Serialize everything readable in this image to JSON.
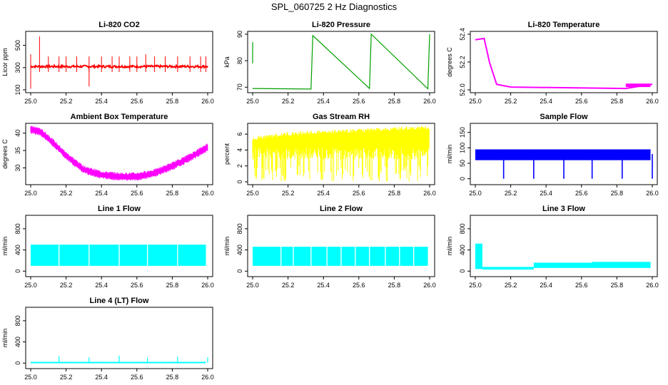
{
  "page": {
    "title": "SPL_060725  2 Hz Diagnostics"
  },
  "chart_data": [
    {
      "id": "co2",
      "type": "line",
      "title": "Li-820 CO2",
      "ylabel": "Licor ppm",
      "color": "#ff0000",
      "xlim": [
        25.0,
        26.0
      ],
      "ylim": [
        100,
        600
      ],
      "yticks": [
        100,
        300,
        500
      ],
      "xticks": [
        "25.0",
        "25.2",
        "25.4",
        "25.6",
        "25.8",
        "26.0"
      ],
      "series": [
        {
          "name": "CO2",
          "x": [
            25.0,
            25.02,
            25.04,
            25.05,
            25.06,
            25.1,
            25.2,
            25.3,
            25.33,
            25.34,
            25.4,
            25.5,
            25.6,
            25.65,
            25.7,
            25.8,
            25.9,
            26.0
          ],
          "values": [
            310,
            300,
            305,
            580,
            310,
            315,
            320,
            310,
            130,
            300,
            315,
            318,
            310,
            380,
            305,
            310,
            315,
            300
          ]
        }
      ]
    },
    {
      "id": "pressure",
      "type": "line",
      "title": "Li-820 Pressure",
      "ylabel": "kPa",
      "color": "#00a000",
      "xlim": [
        25.0,
        26.0
      ],
      "ylim": [
        69,
        90
      ],
      "yticks": [
        70,
        80,
        90
      ],
      "xticks": [
        "25.0",
        "25.2",
        "25.4",
        "25.6",
        "25.8",
        "26.0"
      ],
      "series": [
        {
          "name": "Pressure",
          "x": [
            25.0,
            25.33,
            25.34,
            25.66,
            25.67,
            25.99,
            26.0
          ],
          "values": [
            69.5,
            69.3,
            89.5,
            69.5,
            90,
            69.4,
            90
          ]
        }
      ]
    },
    {
      "id": "temperature",
      "type": "line",
      "title": "Li-820 Temperature",
      "ylabel": "degrees C",
      "color": "#ff00ff",
      "xlim": [
        25.0,
        26.0
      ],
      "ylim": [
        52.0,
        52.4
      ],
      "yticks": [
        52.0,
        52.2,
        52.4
      ],
      "xticks": [
        "25.0",
        "25.2",
        "25.4",
        "25.6",
        "25.8",
        "26.0"
      ],
      "series": [
        {
          "name": "Temp",
          "x": [
            25.0,
            25.05,
            25.08,
            25.12,
            25.2,
            25.85,
            26.0
          ],
          "values": [
            52.36,
            52.37,
            52.2,
            52.04,
            52.02,
            52.01,
            52.04
          ]
        }
      ]
    },
    {
      "id": "ambient",
      "type": "line",
      "title": "Ambient Box Temperature",
      "ylabel": "degrees C",
      "color": "#ff00ff",
      "xlim": [
        25.0,
        26.0
      ],
      "ylim": [
        26,
        42
      ],
      "yticks": [
        30,
        35,
        40
      ],
      "xticks": [
        "25.0",
        "25.2",
        "25.4",
        "25.6",
        "25.8",
        "26.0"
      ],
      "series": [
        {
          "name": "Ambient",
          "x": [
            25.0,
            25.05,
            25.1,
            25.2,
            25.3,
            25.4,
            25.5,
            25.6,
            25.7,
            25.8,
            25.9,
            26.0
          ],
          "values": [
            41,
            40.5,
            38.5,
            33.5,
            29.5,
            28,
            27.5,
            27.5,
            28.5,
            30.5,
            33,
            36
          ]
        }
      ]
    },
    {
      "id": "rh",
      "type": "area",
      "title": "Gas Stream RH",
      "ylabel": "percent",
      "color": "#ffff00",
      "xlim": [
        25.0,
        26.0
      ],
      "ylim": [
        0,
        7
      ],
      "yticks": [
        0,
        2,
        4,
        6
      ],
      "xticks": [
        "25.0",
        "25.2",
        "25.4",
        "25.6",
        "25.8",
        "26.0"
      ],
      "series": [
        {
          "name": "RH",
          "x": [
            25.0,
            25.2,
            25.4,
            25.6,
            25.8,
            26.0
          ],
          "values": [
            5.2,
            5.8,
            6.0,
            6.2,
            6.4,
            6.6
          ]
        }
      ]
    },
    {
      "id": "sample",
      "type": "line",
      "title": "Sample Flow",
      "ylabel": "ml/min",
      "color": "#0000ff",
      "xlim": [
        25.0,
        26.0
      ],
      "ylim": [
        -10,
        170
      ],
      "yticks": [
        0,
        50,
        100,
        150
      ],
      "xticks": [
        "25.0",
        "25.2",
        "25.4",
        "25.6",
        "25.8",
        "26.0"
      ],
      "series": [
        {
          "name": "Sample",
          "x": [
            25.0,
            25.16,
            25.33,
            25.5,
            25.66,
            25.83,
            26.0
          ],
          "values": [
            80,
            0,
            0,
            0,
            0,
            0,
            0
          ]
        }
      ]
    },
    {
      "id": "line1",
      "type": "area",
      "title": "Line 1 Flow",
      "ylabel": "ml/min",
      "color": "#00ffff",
      "xlim": [
        25.0,
        26.0
      ],
      "ylim": [
        -50,
        1000
      ],
      "yticks": [
        0,
        400,
        800
      ],
      "xticks": [
        "25.0",
        "25.2",
        "25.4",
        "25.6",
        "25.8",
        "26.0"
      ],
      "series": [
        {
          "name": "Line 1",
          "x": [
            25.0,
            26.0
          ],
          "values": [
            500,
            500
          ]
        }
      ]
    },
    {
      "id": "line2",
      "type": "area",
      "title": "Line 2 Flow",
      "ylabel": "ml/min",
      "color": "#00ffff",
      "xlim": [
        25.0,
        26.0
      ],
      "ylim": [
        -50,
        1000
      ],
      "yticks": [
        0,
        400,
        800
      ],
      "xticks": [
        "25.0",
        "25.2",
        "25.4",
        "25.6",
        "25.8",
        "26.0"
      ],
      "series": [
        {
          "name": "Line 2",
          "x": [
            25.0,
            26.0
          ],
          "values": [
            460,
            460
          ]
        }
      ]
    },
    {
      "id": "line3",
      "type": "line",
      "title": "Line 3 Flow",
      "ylabel": "ml/min",
      "color": "#00ffff",
      "xlim": [
        25.0,
        26.0
      ],
      "ylim": [
        -50,
        1000
      ],
      "yticks": [
        0,
        400,
        800
      ],
      "xticks": [
        "25.0",
        "25.2",
        "25.4",
        "25.6",
        "25.8",
        "26.0"
      ],
      "series": [
        {
          "name": "Line 3",
          "x": [
            25.0,
            25.04,
            25.05,
            25.33,
            25.34,
            26.0
          ],
          "values": [
            520,
            520,
            60,
            60,
            140,
            140
          ]
        }
      ]
    },
    {
      "id": "line4",
      "type": "line",
      "title": "Line 4 (LT) Flow",
      "ylabel": "ml/min",
      "color": "#00ffff",
      "xlim": [
        25.0,
        26.0
      ],
      "ylim": [
        -50,
        1000
      ],
      "yticks": [
        0,
        400,
        800
      ],
      "xticks": [
        "25.0",
        "25.2",
        "25.4",
        "25.6",
        "25.8",
        "26.0"
      ],
      "series": [
        {
          "name": "Line 4",
          "x": [
            25.0,
            25.16,
            25.33,
            25.5,
            25.66,
            25.83,
            26.0
          ],
          "values": [
            20,
            90,
            70,
            100,
            60,
            80,
            70
          ]
        }
      ]
    }
  ]
}
